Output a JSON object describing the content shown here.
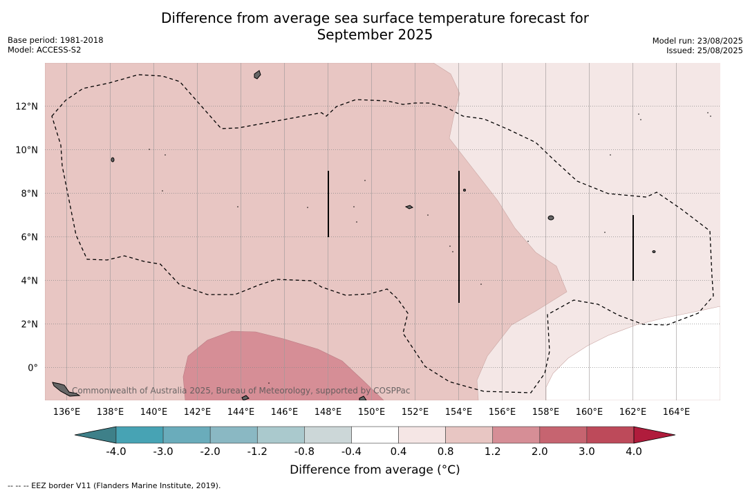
{
  "title_line1": "Difference from average sea surface temperature forecast for",
  "title_line2": "September 2025",
  "base_period": "Base period: 1981-2018",
  "model": "Model: ACCESS-S2",
  "model_run": "Model run: 23/08/2025",
  "issued": "Issued: 25/08/2025",
  "credit": "Commonwealth of Australia 2025, Bureau of Meteorology, supported by COSPPac",
  "colorbar_label": "Difference from average (°C)",
  "footnote": "--  --  -- EEZ border V11 (Flanders Marine Institute, 2019).",
  "lon_labels": [
    {
      "lon": 136,
      "text": "136°E"
    },
    {
      "lon": 138,
      "text": "138°E"
    },
    {
      "lon": 140,
      "text": "140°E"
    },
    {
      "lon": 142,
      "text": "142°E"
    },
    {
      "lon": 144,
      "text": "144°E"
    },
    {
      "lon": 146,
      "text": "146°E"
    },
    {
      "lon": 148,
      "text": "148°E"
    },
    {
      "lon": 150,
      "text": "150°E"
    },
    {
      "lon": 152,
      "text": "152°E"
    },
    {
      "lon": 154,
      "text": "154°E"
    },
    {
      "lon": 156,
      "text": "156°E"
    },
    {
      "lon": 158,
      "text": "158°E"
    },
    {
      "lon": 160,
      "text": "160°E"
    },
    {
      "lon": 162,
      "text": "162°E"
    },
    {
      "lon": 164,
      "text": "164°E"
    }
  ],
  "lat_labels": [
    {
      "lat": 12,
      "text": "12°N"
    },
    {
      "lat": 10,
      "text": "10°N"
    },
    {
      "lat": 8,
      "text": "8°N"
    },
    {
      "lat": 6,
      "text": "6°N"
    },
    {
      "lat": 4,
      "text": "4°N"
    },
    {
      "lat": 2,
      "text": "2°N"
    },
    {
      "lat": 0,
      "text": "0°"
    }
  ],
  "colorbar": {
    "ticks": [
      "-4.0",
      "-3.0",
      "-2.0",
      "-1.2",
      "-0.8",
      "-0.4",
      "0.4",
      "0.8",
      "1.2",
      "2.0",
      "3.0",
      "4.0"
    ],
    "colors": [
      "#47a3b4",
      "#6aacbb",
      "#8ab8c3",
      "#aac9cd",
      "#ccd7d8",
      "#ffffff",
      "#f5e6e5",
      "#e8c6c3",
      "#d68e96",
      "#c66470",
      "#bd4a5a"
    ],
    "under_color": "#3e8089",
    "over_color": "#b01c3c"
  },
  "fill_colors": {
    "pale": "#f4e7e6",
    "light": "#e8c6c3",
    "medium": "#d68e96"
  }
}
